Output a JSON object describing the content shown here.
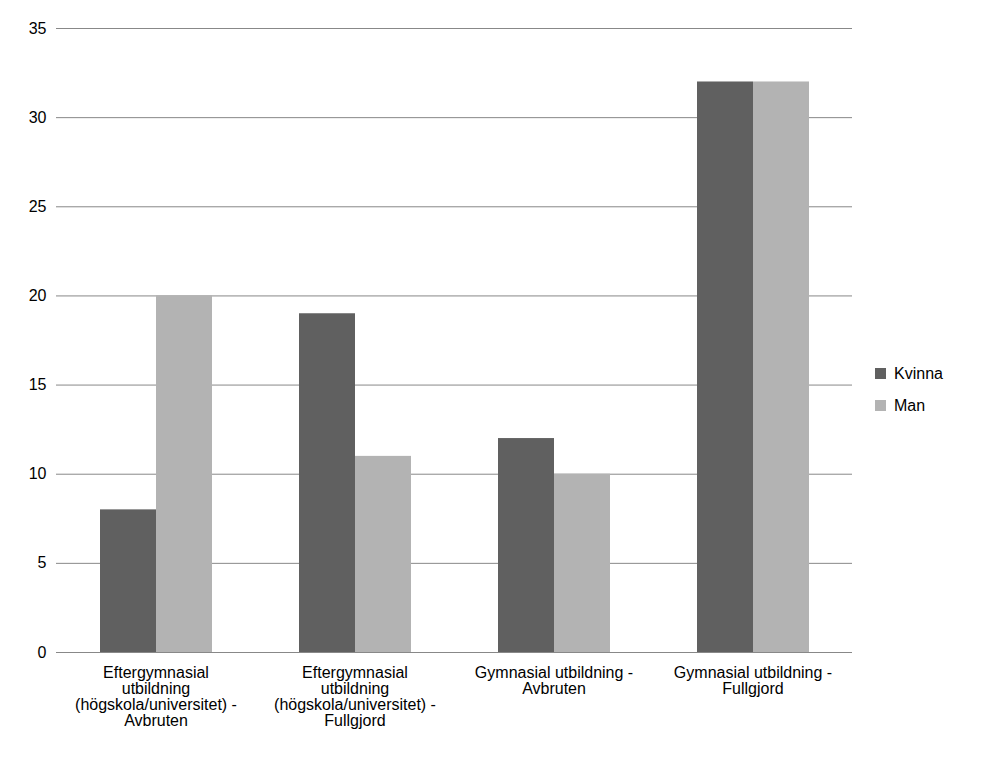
{
  "chart_data": {
    "type": "bar",
    "categories": [
      "Eftergymnasial utbildning (högskola/universitet) - Avbruten",
      "Eftergymnasial utbildning (högskola/universitet) - Fullgjord",
      "Gymnasial utbildning - Avbruten",
      "Gymnasial utbildning - Fullgjord"
    ],
    "series": [
      {
        "name": "Kvinna",
        "color": "#606060",
        "values": [
          8,
          19,
          12,
          32
        ]
      },
      {
        "name": "Man",
        "color": "#b3b3b3",
        "values": [
          20,
          11,
          10,
          32
        ]
      }
    ],
    "ylim": [
      0,
      35
    ],
    "yticks": [
      0,
      5,
      10,
      15,
      20,
      25,
      30,
      35
    ],
    "grid": true,
    "legend": "right"
  }
}
